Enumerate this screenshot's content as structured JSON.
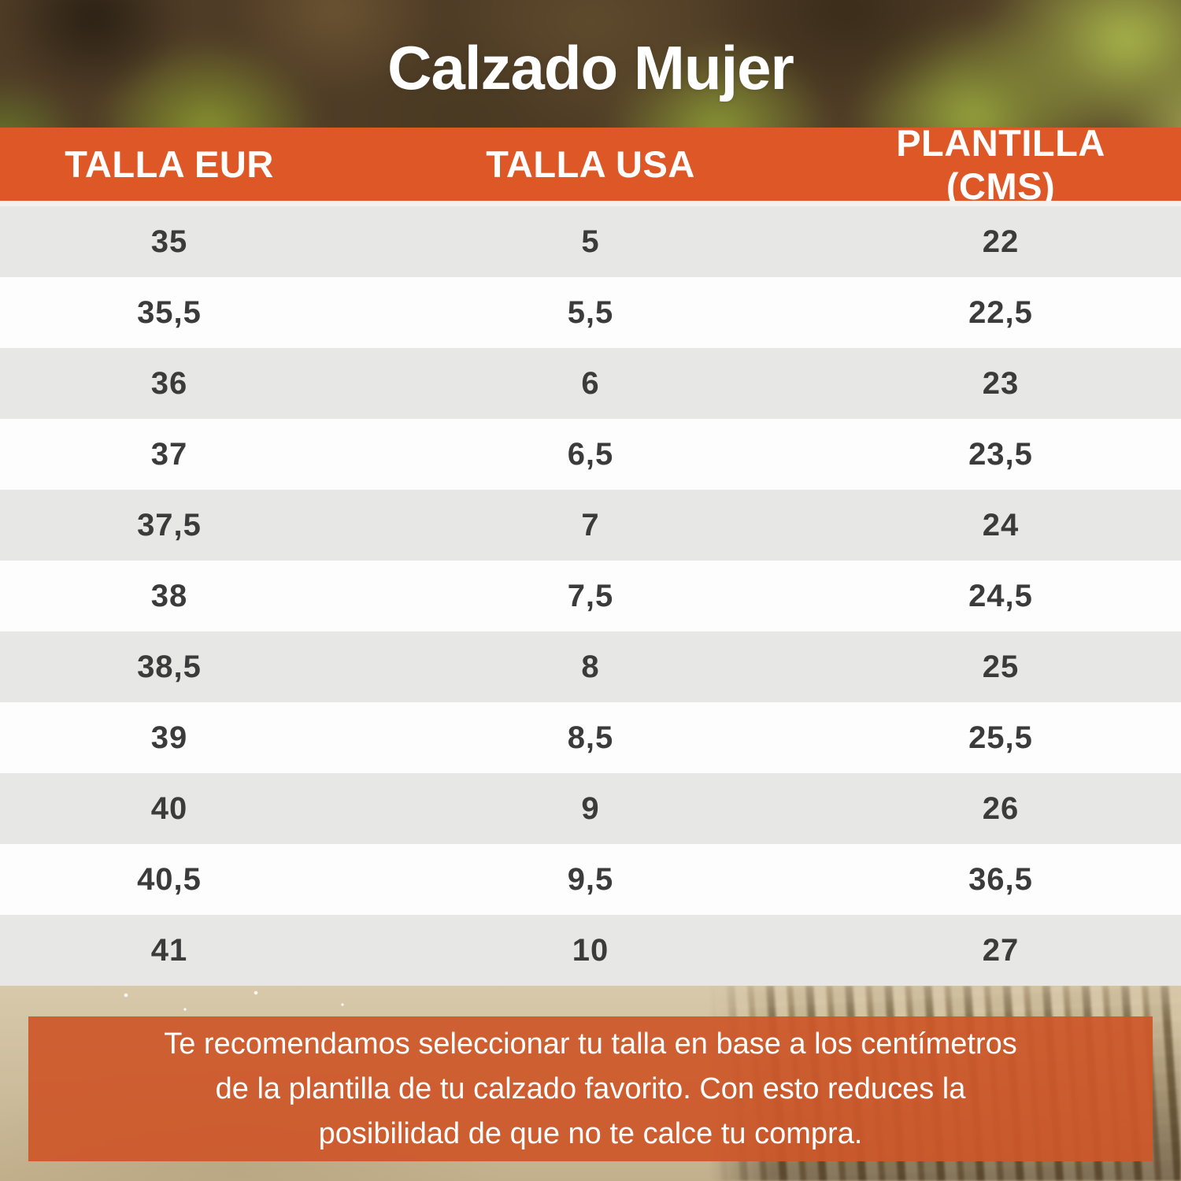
{
  "title": "Calzado Mujer",
  "table": {
    "headers": [
      "TALLA EUR",
      "TALLA USA",
      "PLANTILLA (CMS)"
    ],
    "rows": [
      [
        "35",
        "5",
        "22"
      ],
      [
        "35,5",
        "5,5",
        "22,5"
      ],
      [
        "36",
        "6",
        "23"
      ],
      [
        "37",
        "6,5",
        "23,5"
      ],
      [
        "37,5",
        "7",
        "24"
      ],
      [
        "38",
        "7,5",
        "24,5"
      ],
      [
        "38,5",
        "8",
        "25"
      ],
      [
        "39",
        "8,5",
        "25,5"
      ],
      [
        "40",
        "9",
        "26"
      ],
      [
        "40,5",
        "9,5",
        "36,5"
      ],
      [
        "41",
        "10",
        "27"
      ]
    ]
  },
  "footer": {
    "lines": [
      "Te recomendamos seleccionar tu talla en base a los centímetros",
      "de la plantilla de tu calzado favorito. Con esto reduces la",
      "posibilidad de que no te calce tu compra."
    ]
  },
  "colors": {
    "header_bar": "#DE5827",
    "footer_banner": "#CE5729",
    "row_alt_gray": "#E7E7E6",
    "row_white": "#FDFDFD",
    "cell_text": "#3B3B3B",
    "header_text": "#FFFFFF",
    "title_text": "#FFFFFF"
  },
  "chart_data": {
    "type": "table",
    "title": "Calzado Mujer",
    "columns": [
      "TALLA EUR",
      "TALLA USA",
      "PLANTILLA (CMS)"
    ],
    "rows": [
      [
        "35",
        "5",
        "22"
      ],
      [
        "35,5",
        "5,5",
        "22,5"
      ],
      [
        "36",
        "6",
        "23"
      ],
      [
        "37",
        "6,5",
        "23,5"
      ],
      [
        "37,5",
        "7",
        "24"
      ],
      [
        "38",
        "7,5",
        "24,5"
      ],
      [
        "38,5",
        "8",
        "25"
      ],
      [
        "39",
        "8,5",
        "25,5"
      ],
      [
        "40",
        "9",
        "26"
      ],
      [
        "40,5",
        "9,5",
        "36,5"
      ],
      [
        "41",
        "10",
        "27"
      ]
    ]
  }
}
